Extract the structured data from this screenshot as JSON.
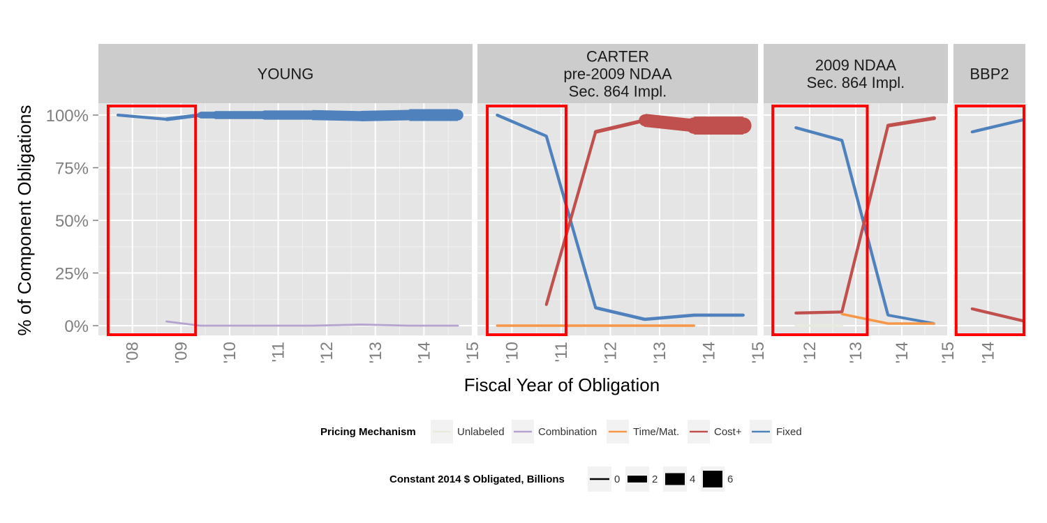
{
  "chart_data": {
    "type": "line",
    "ylabel": "% of Component Obligations",
    "xlabel": "Fiscal Year of Obligation",
    "y_ticks": [
      "0%",
      "25%",
      "50%",
      "75%",
      "100%"
    ],
    "ylim": [
      0,
      1
    ],
    "grid": true,
    "colors": {
      "Unlabeled": "#e8ecde",
      "Combination": "#b4a3cf",
      "Time/Mat.": "#f79646",
      "Cost+": "#c0504d",
      "Fixed": "#4f81bd"
    },
    "panels": [
      {
        "title": "YOUNG",
        "xlim": [
          2007.3,
          2015.0
        ],
        "x_ticks": [
          "'08",
          "'09",
          "'10",
          "'11",
          "'12",
          "'13",
          "'14",
          "'15"
        ],
        "x_tick_values": [
          2008,
          2009,
          2010,
          2011,
          2012,
          2013,
          2014,
          2015
        ],
        "highlight": [
          2007.5,
          2009.3
        ],
        "series": [
          {
            "name": "Fixed",
            "points": [
              [
                2007.7,
                1.0,
                0.5
              ],
              [
                2008.7,
                0.98,
                0.8
              ],
              [
                2009.4,
                1.0,
                2.0
              ],
              [
                2009.7,
                1.0,
                2.5
              ],
              [
                2010.7,
                1.0,
                3.0
              ],
              [
                2011.7,
                1.0,
                3.3
              ],
              [
                2012.7,
                0.995,
                3.5
              ],
              [
                2013.7,
                1.0,
                4.0
              ],
              [
                2014.7,
                1.0,
                4.0
              ]
            ]
          },
          {
            "name": "Combination",
            "points": [
              [
                2008.7,
                0.02,
                0.1
              ],
              [
                2009.4,
                0.0,
                0.1
              ],
              [
                2010.7,
                0.0,
                0.1
              ],
              [
                2011.7,
                0.0,
                0.1
              ],
              [
                2012.7,
                0.005,
                0.1
              ],
              [
                2013.7,
                0.0,
                0.1
              ],
              [
                2014.7,
                0.0,
                0.1
              ]
            ]
          }
        ]
      },
      {
        "title": "CARTER\npre-2009 NDAA\nSec. 864 Impl.",
        "xlim": [
          2009.3,
          2015.0
        ],
        "x_ticks": [
          "'10",
          "'11",
          "'12",
          "'13",
          "'14",
          "'15"
        ],
        "x_tick_values": [
          2010,
          2011,
          2012,
          2013,
          2014,
          2015
        ],
        "highlight": [
          2009.5,
          2011.1
        ],
        "series": [
          {
            "name": "Fixed",
            "points": [
              [
                2009.7,
                1.0,
                0.5
              ],
              [
                2010.7,
                0.9,
                0.5
              ],
              [
                2011.7,
                0.085,
                0.6
              ],
              [
                2012.7,
                0.03,
                0.6
              ],
              [
                2013.7,
                0.05,
                0.6
              ],
              [
                2014.7,
                0.05,
                0.6
              ]
            ]
          },
          {
            "name": "Cost+",
            "points": [
              [
                2010.7,
                0.1,
                0.5
              ],
              [
                2011.7,
                0.92,
                0.8
              ],
              [
                2012.7,
                0.975,
                4.5
              ],
              [
                2013.7,
                0.95,
                6.5
              ],
              [
                2014.7,
                0.95,
                6.5
              ]
            ]
          },
          {
            "name": "Time/Mat.",
            "points": [
              [
                2009.7,
                0.0,
                0.3
              ],
              [
                2010.7,
                0.0,
                0.3
              ],
              [
                2011.7,
                0.0,
                0.3
              ],
              [
                2012.7,
                0.0,
                0.3
              ],
              [
                2013.7,
                0.0,
                0.3
              ]
            ]
          }
        ]
      },
      {
        "title": "2009 NDAA\nSec. 864 Impl.",
        "xlim": [
          2011.0,
          2015.0
        ],
        "x_ticks": [
          "'12",
          "'13",
          "'14",
          "'15"
        ],
        "x_tick_values": [
          2012,
          2013,
          2014,
          2015
        ],
        "highlight": [
          2011.2,
          2013.25
        ],
        "series": [
          {
            "name": "Fixed",
            "points": [
              [
                2011.7,
                0.94,
                0.5
              ],
              [
                2012.7,
                0.88,
                0.5
              ],
              [
                2013.7,
                0.05,
                0.4
              ],
              [
                2014.7,
                0.01,
                0.3
              ]
            ]
          },
          {
            "name": "Cost+",
            "points": [
              [
                2011.7,
                0.06,
                0.5
              ],
              [
                2012.7,
                0.065,
                0.5
              ],
              [
                2013.7,
                0.95,
                0.8
              ],
              [
                2014.7,
                0.985,
                1.0
              ]
            ]
          },
          {
            "name": "Time/Mat.",
            "points": [
              [
                2012.7,
                0.055,
                0.3
              ],
              [
                2013.7,
                0.01,
                0.3
              ],
              [
                2014.7,
                0.01,
                0.3
              ]
            ]
          },
          {
            "name": "Unlabeled",
            "points": [
              [
                2011.7,
                0.0,
                0.2
              ],
              [
                2012.7,
                0.0,
                0.2
              ]
            ]
          }
        ]
      },
      {
        "title": "BBP2",
        "xlim": [
          2013.35,
          2014.7
        ],
        "x_ticks": [
          "'14"
        ],
        "x_tick_values": [
          2014
        ],
        "highlight": [
          2013.4,
          2014.7
        ],
        "series": [
          {
            "name": "Fixed",
            "points": [
              [
                2013.7,
                0.92,
                0.5
              ],
              [
                2014.7,
                0.98,
                0.5
              ]
            ]
          },
          {
            "name": "Cost+",
            "points": [
              [
                2013.7,
                0.08,
                0.5
              ],
              [
                2014.7,
                0.02,
                0.5
              ]
            ]
          }
        ]
      }
    ],
    "legend": {
      "position": "bottom",
      "color_title": "Pricing Mechanism",
      "color_items": [
        "Unlabeled",
        "Combination",
        "Time/Mat.",
        "Cost+",
        "Fixed"
      ],
      "size_title": "Constant 2014 $ Obligated, Billions",
      "size_items": [
        {
          "label": "0",
          "value": 0
        },
        {
          "label": "2",
          "value": 2
        },
        {
          "label": "4",
          "value": 4
        },
        {
          "label": "6",
          "value": 6
        }
      ]
    }
  }
}
